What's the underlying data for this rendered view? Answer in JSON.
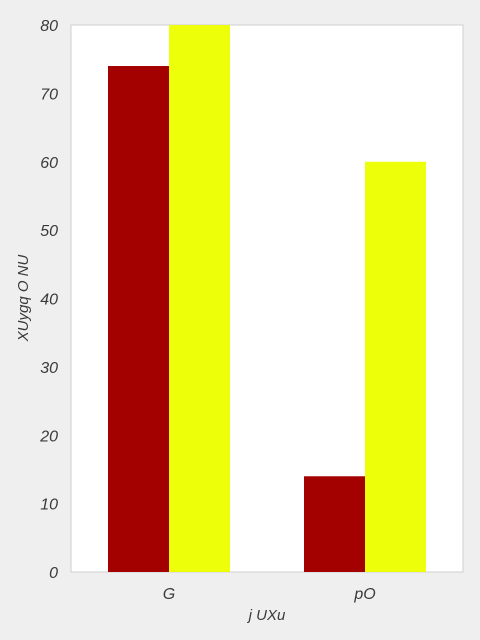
{
  "chart_data": {
    "type": "bar",
    "categories": [
      "G",
      "pO"
    ],
    "series": [
      {
        "color": "#a30000",
        "values": [
          74,
          14
        ]
      },
      {
        "color": "#eeff0a",
        "values": [
          80,
          60
        ]
      }
    ],
    "xlabel": "j UXu",
    "ylabel": "XUygq O NU",
    "ylim": [
      0,
      80
    ],
    "yticks": [
      0,
      10,
      20,
      30,
      40,
      50,
      60,
      70,
      80
    ],
    "grid": false,
    "background": "#efefef",
    "plot_background": "#ffffff"
  }
}
